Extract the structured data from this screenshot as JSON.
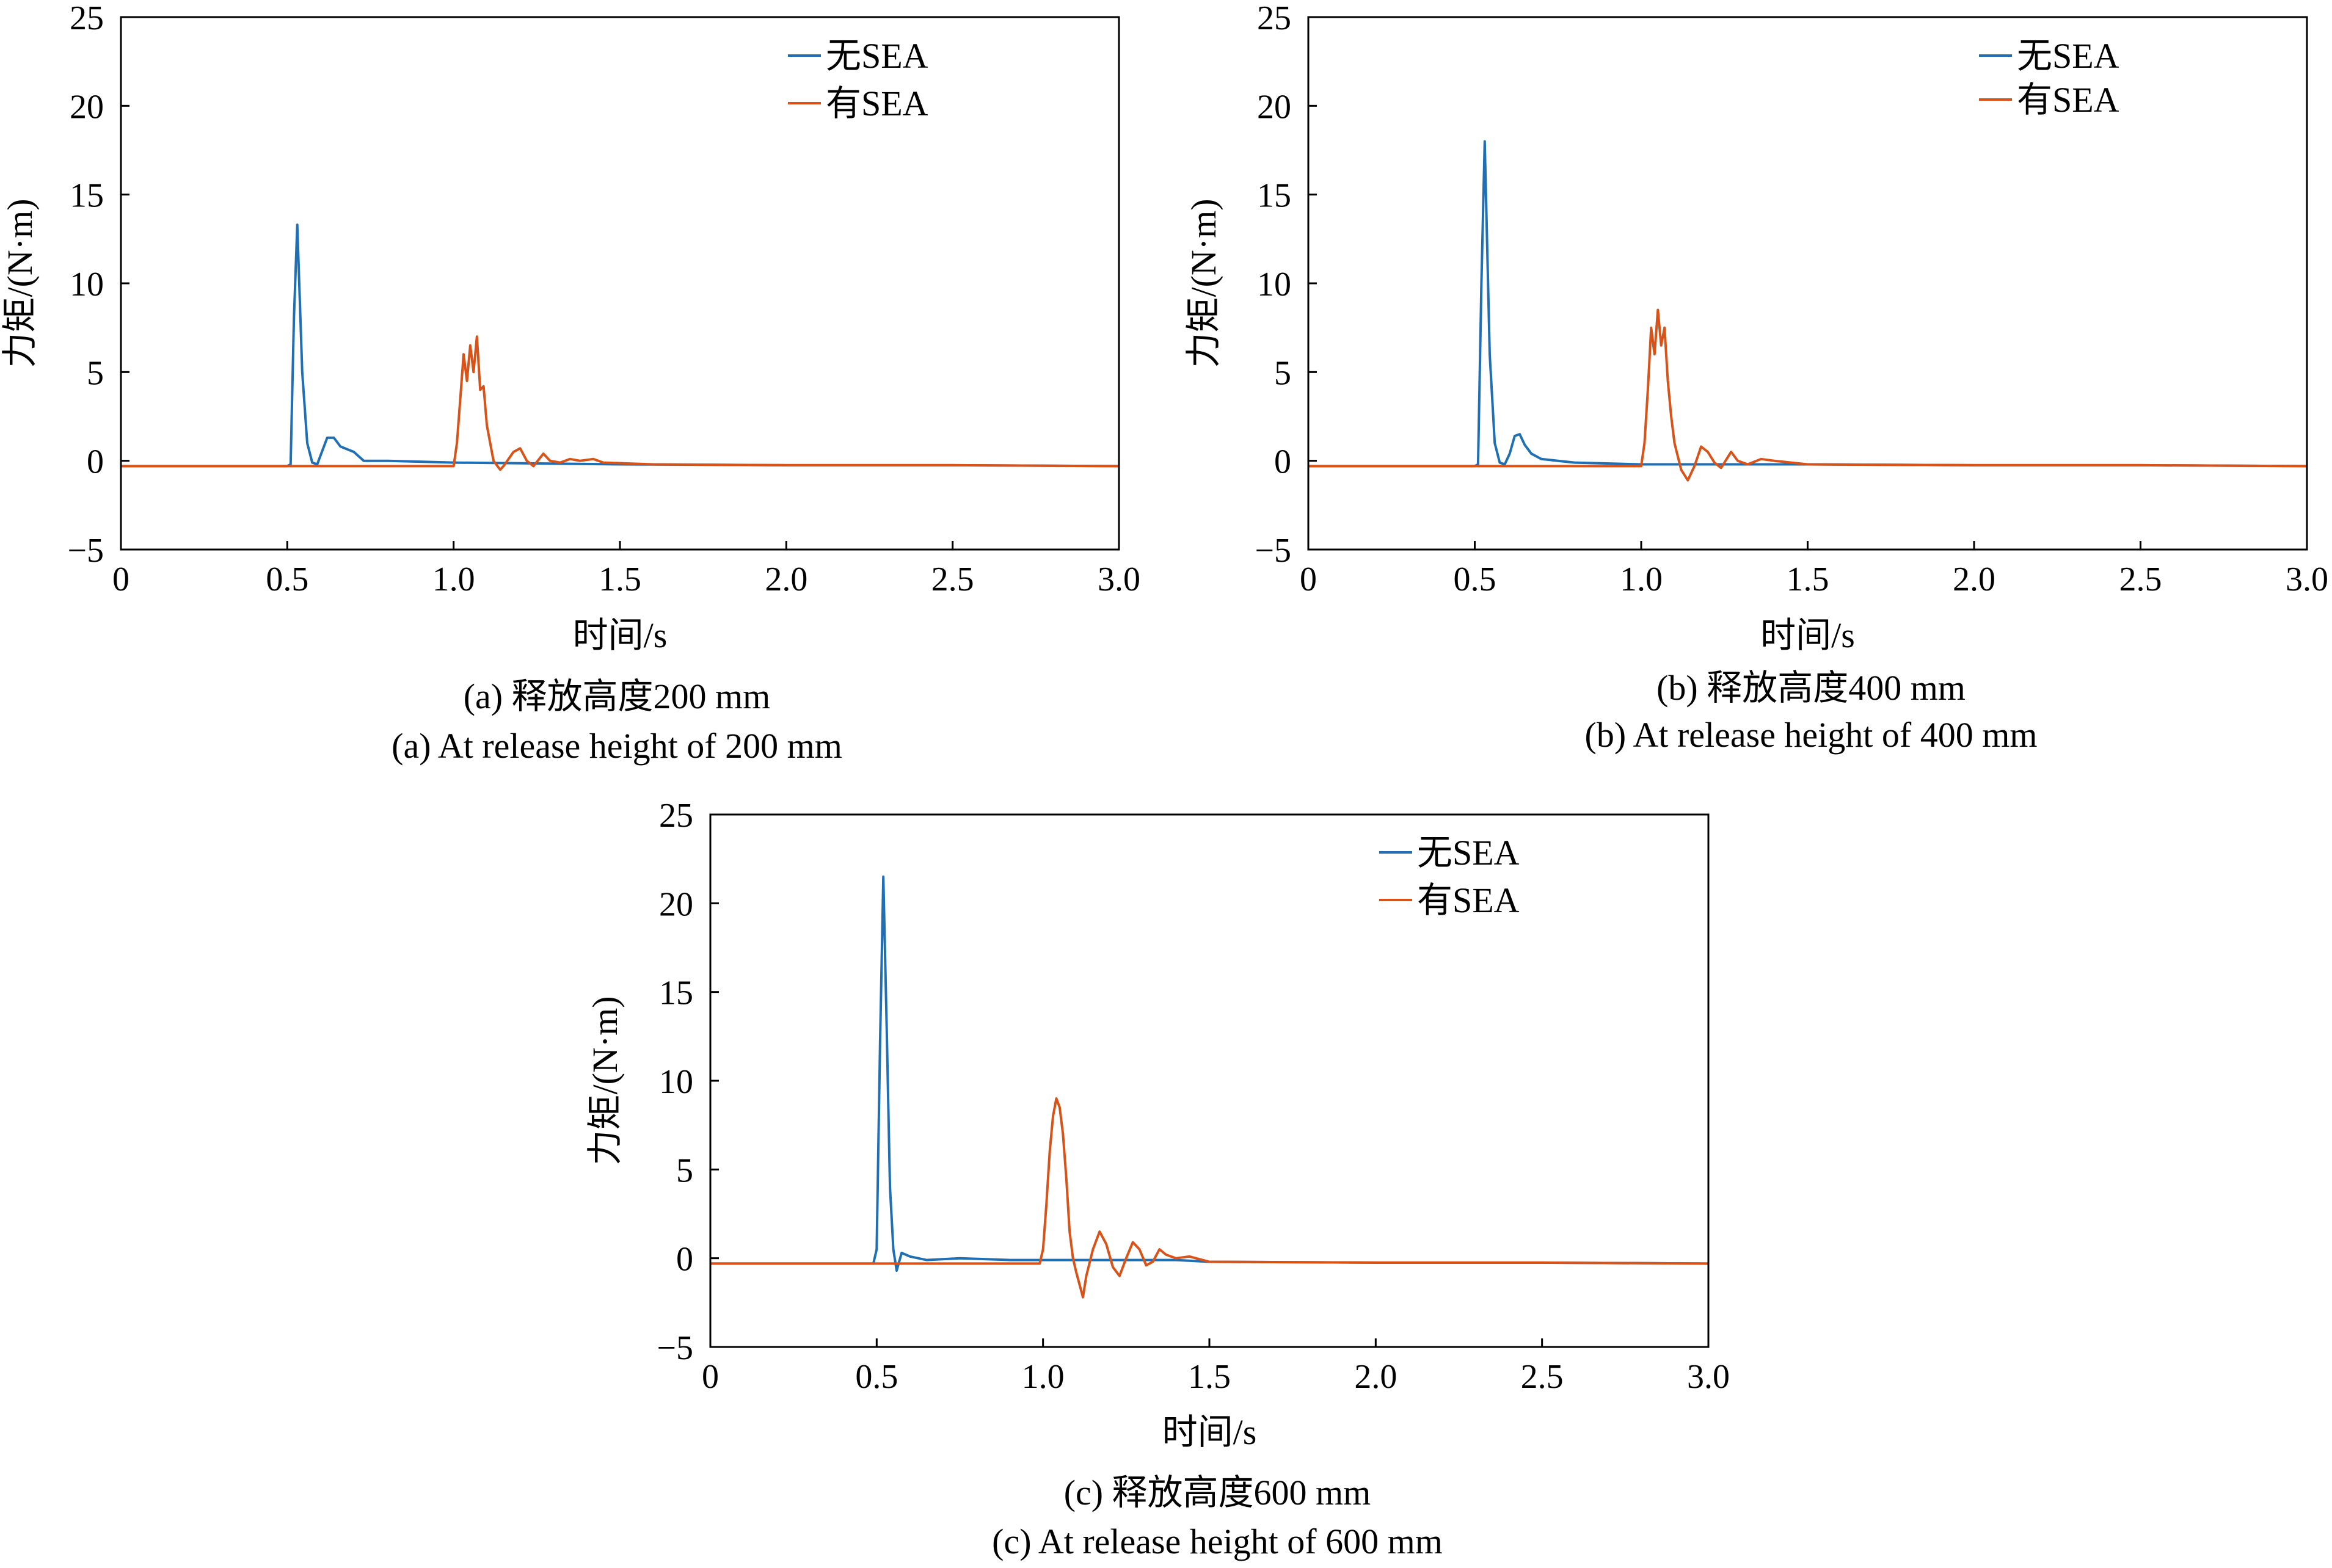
{
  "figure": {
    "colors": {
      "no_sea": "#1f6fb4",
      "with_sea": "#d95319",
      "axis": "#000000"
    },
    "panels": [
      {
        "id": "a",
        "caption_zh": "(a) 释放高度200 mm",
        "caption_en": "(a) At release height of 200 mm"
      },
      {
        "id": "b",
        "caption_zh": "(b) 释放高度400 mm",
        "caption_en": "(b) At release height of 400 mm"
      },
      {
        "id": "c",
        "caption_zh": "(c) 释放高度600 mm",
        "caption_en": "(c) At release height of 600 mm"
      }
    ]
  },
  "chart_data": [
    {
      "type": "line",
      "xlabel": "时间/s",
      "ylabel": "力矩/(N·m)",
      "xlim": [
        0,
        3.0
      ],
      "ylim": [
        -5,
        25
      ],
      "xticks": [
        "0",
        "0.5",
        "1.0",
        "1.5",
        "2.0",
        "2.5",
        "3.0"
      ],
      "yticks": [
        "−5",
        "0",
        "5",
        "10",
        "15",
        "20",
        "25"
      ],
      "legend_position": "top-right",
      "series": [
        {
          "name": "无SEA",
          "color": "#1f6fb4",
          "points": [
            [
              0,
              -0.3
            ],
            [
              0.5,
              -0.3
            ],
            [
              0.51,
              -0.2
            ],
            [
              0.52,
              8.0
            ],
            [
              0.53,
              13.3
            ],
            [
              0.545,
              5.0
            ],
            [
              0.56,
              1.0
            ],
            [
              0.575,
              -0.1
            ],
            [
              0.59,
              -0.2
            ],
            [
              0.6,
              0.3
            ],
            [
              0.62,
              1.3
            ],
            [
              0.64,
              1.3
            ],
            [
              0.66,
              0.8
            ],
            [
              0.7,
              0.5
            ],
            [
              0.73,
              0.0
            ],
            [
              0.8,
              0.0
            ],
            [
              0.9,
              -0.05
            ],
            [
              1.0,
              -0.1
            ],
            [
              1.5,
              -0.2
            ],
            [
              2.0,
              -0.25
            ],
            [
              2.5,
              -0.25
            ],
            [
              3.0,
              -0.3
            ]
          ]
        },
        {
          "name": "有SEA",
          "color": "#d95319",
          "points": [
            [
              0,
              -0.3
            ],
            [
              1.0,
              -0.3
            ],
            [
              1.01,
              1.0
            ],
            [
              1.02,
              3.5
            ],
            [
              1.03,
              6.0
            ],
            [
              1.04,
              4.5
            ],
            [
              1.05,
              6.5
            ],
            [
              1.06,
              5.0
            ],
            [
              1.07,
              7.0
            ],
            [
              1.08,
              4.0
            ],
            [
              1.09,
              4.2
            ],
            [
              1.1,
              2.0
            ],
            [
              1.12,
              0.0
            ],
            [
              1.14,
              -0.5
            ],
            [
              1.15,
              -0.3
            ],
            [
              1.18,
              0.5
            ],
            [
              1.2,
              0.7
            ],
            [
              1.22,
              0.0
            ],
            [
              1.24,
              -0.3
            ],
            [
              1.27,
              0.4
            ],
            [
              1.29,
              0.0
            ],
            [
              1.32,
              -0.1
            ],
            [
              1.35,
              0.1
            ],
            [
              1.38,
              0.0
            ],
            [
              1.42,
              0.1
            ],
            [
              1.45,
              -0.1
            ],
            [
              1.6,
              -0.2
            ],
            [
              2.0,
              -0.25
            ],
            [
              2.5,
              -0.25
            ],
            [
              3.0,
              -0.3
            ]
          ]
        }
      ]
    },
    {
      "type": "line",
      "xlabel": "时间/s",
      "ylabel": "力矩/(N·m)",
      "xlim": [
        0,
        3.0
      ],
      "ylim": [
        -5,
        25
      ],
      "xticks": [
        "0",
        "0.5",
        "1.0",
        "1.5",
        "2.0",
        "2.5",
        "3.0"
      ],
      "yticks": [
        "−5",
        "0",
        "5",
        "10",
        "15",
        "20",
        "25"
      ],
      "legend_position": "top-right",
      "series": [
        {
          "name": "无SEA",
          "color": "#1f6fb4",
          "points": [
            [
              0,
              -0.3
            ],
            [
              0.5,
              -0.3
            ],
            [
              0.51,
              -0.2
            ],
            [
              0.52,
              10.0
            ],
            [
              0.53,
              18.0
            ],
            [
              0.545,
              6.0
            ],
            [
              0.56,
              1.0
            ],
            [
              0.575,
              -0.1
            ],
            [
              0.59,
              -0.2
            ],
            [
              0.605,
              0.4
            ],
            [
              0.62,
              1.4
            ],
            [
              0.635,
              1.5
            ],
            [
              0.65,
              0.9
            ],
            [
              0.67,
              0.4
            ],
            [
              0.7,
              0.1
            ],
            [
              0.75,
              0.0
            ],
            [
              0.8,
              -0.1
            ],
            [
              1.0,
              -0.2
            ],
            [
              1.5,
              -0.2
            ],
            [
              2.0,
              -0.25
            ],
            [
              2.5,
              -0.25
            ],
            [
              3.0,
              -0.3
            ]
          ]
        },
        {
          "name": "有SEA",
          "color": "#d95319",
          "points": [
            [
              0,
              -0.3
            ],
            [
              1.0,
              -0.3
            ],
            [
              1.01,
              1.0
            ],
            [
              1.02,
              4.0
            ],
            [
              1.03,
              7.5
            ],
            [
              1.04,
              6.0
            ],
            [
              1.05,
              8.5
            ],
            [
              1.06,
              6.5
            ],
            [
              1.07,
              7.5
            ],
            [
              1.08,
              4.5
            ],
            [
              1.09,
              2.5
            ],
            [
              1.1,
              1.0
            ],
            [
              1.12,
              -0.5
            ],
            [
              1.14,
              -1.1
            ],
            [
              1.16,
              -0.3
            ],
            [
              1.18,
              0.8
            ],
            [
              1.2,
              0.5
            ],
            [
              1.22,
              -0.1
            ],
            [
              1.24,
              -0.4
            ],
            [
              1.27,
              0.5
            ],
            [
              1.29,
              0.0
            ],
            [
              1.32,
              -0.2
            ],
            [
              1.36,
              0.1
            ],
            [
              1.4,
              0.0
            ],
            [
              1.5,
              -0.2
            ],
            [
              2.0,
              -0.25
            ],
            [
              2.5,
              -0.25
            ],
            [
              3.0,
              -0.3
            ]
          ]
        }
      ]
    },
    {
      "type": "line",
      "xlabel": "时间/s",
      "ylabel": "力矩/(N·m)",
      "xlim": [
        0,
        3.0
      ],
      "ylim": [
        -5,
        25
      ],
      "xticks": [
        "0",
        "0.5",
        "1.0",
        "1.5",
        "2.0",
        "2.5",
        "3.0"
      ],
      "yticks": [
        "−5",
        "0",
        "5",
        "10",
        "15",
        "20",
        "25"
      ],
      "legend_position": "top-right",
      "series": [
        {
          "name": "无SEA",
          "color": "#1f6fb4",
          "points": [
            [
              0,
              -0.3
            ],
            [
              0.49,
              -0.3
            ],
            [
              0.5,
              0.5
            ],
            [
              0.51,
              12.0
            ],
            [
              0.52,
              21.5
            ],
            [
              0.53,
              13.0
            ],
            [
              0.54,
              4.0
            ],
            [
              0.55,
              0.5
            ],
            [
              0.56,
              -0.7
            ],
            [
              0.575,
              0.3
            ],
            [
              0.6,
              0.1
            ],
            [
              0.65,
              -0.1
            ],
            [
              0.75,
              0.0
            ],
            [
              0.9,
              -0.1
            ],
            [
              1.0,
              -0.1
            ],
            [
              1.4,
              -0.1
            ],
            [
              1.5,
              -0.2
            ],
            [
              2.0,
              -0.25
            ],
            [
              2.5,
              -0.25
            ],
            [
              3.0,
              -0.3
            ]
          ]
        },
        {
          "name": "有SEA",
          "color": "#d95319",
          "points": [
            [
              0,
              -0.3
            ],
            [
              0.99,
              -0.3
            ],
            [
              1.0,
              0.5
            ],
            [
              1.01,
              3.0
            ],
            [
              1.02,
              6.0
            ],
            [
              1.03,
              8.0
            ],
            [
              1.04,
              9.0
            ],
            [
              1.05,
              8.5
            ],
            [
              1.06,
              7.0
            ],
            [
              1.07,
              4.5
            ],
            [
              1.08,
              1.5
            ],
            [
              1.09,
              0.0
            ],
            [
              1.1,
              -0.8
            ],
            [
              1.11,
              -1.5
            ],
            [
              1.12,
              -2.2
            ],
            [
              1.13,
              -1.0
            ],
            [
              1.15,
              0.5
            ],
            [
              1.17,
              1.5
            ],
            [
              1.19,
              0.8
            ],
            [
              1.21,
              -0.5
            ],
            [
              1.23,
              -1.0
            ],
            [
              1.25,
              0.0
            ],
            [
              1.27,
              0.9
            ],
            [
              1.29,
              0.5
            ],
            [
              1.31,
              -0.4
            ],
            [
              1.33,
              -0.2
            ],
            [
              1.35,
              0.5
            ],
            [
              1.37,
              0.2
            ],
            [
              1.4,
              0.0
            ],
            [
              1.44,
              0.1
            ],
            [
              1.5,
              -0.2
            ],
            [
              2.0,
              -0.25
            ],
            [
              2.5,
              -0.25
            ],
            [
              3.0,
              -0.3
            ]
          ]
        }
      ]
    }
  ]
}
